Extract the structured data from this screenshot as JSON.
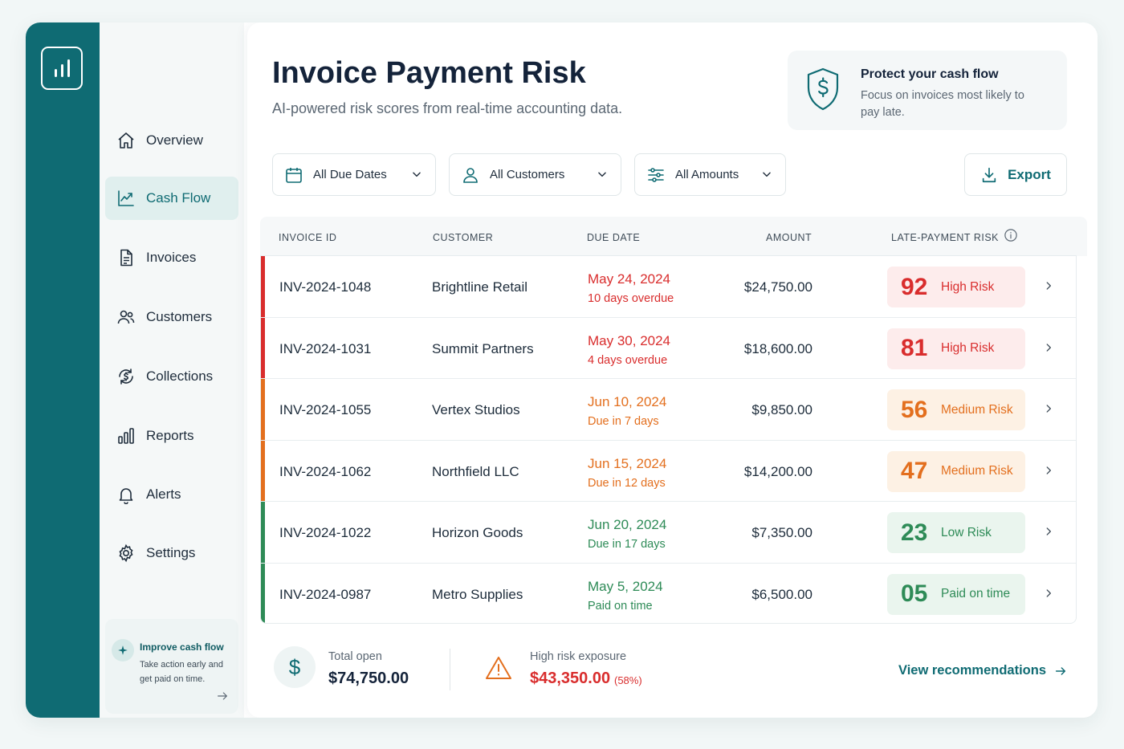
{
  "colors": {
    "brand": "#0f6b73",
    "high": "#d92d2d",
    "medium": "#e36f1e",
    "low": "#2e8b57"
  },
  "sidebar": {
    "items": [
      {
        "label": "Overview",
        "icon": "home-icon"
      },
      {
        "label": "Cash Flow",
        "icon": "trend-line-icon",
        "active": true
      },
      {
        "label": "Invoices",
        "icon": "document-icon"
      },
      {
        "label": "Customers",
        "icon": "users-icon"
      },
      {
        "label": "Collections",
        "icon": "money-cycle-icon"
      },
      {
        "label": "Reports",
        "icon": "bar-chart-icon"
      },
      {
        "label": "Alerts",
        "icon": "bell-icon"
      },
      {
        "label": "Settings",
        "icon": "gear-icon"
      }
    ],
    "tip": {
      "title": "Improve cash flow",
      "text": "Take action early and get paid on time."
    }
  },
  "header": {
    "title": "Invoice Payment Risk",
    "subtitle": "AI-powered risk scores from real-time accounting data."
  },
  "promo": {
    "title": "Protect your cash flow",
    "text": "Focus on invoices most likely to pay late."
  },
  "filters": {
    "due_dates": "All Due Dates",
    "customers": "All Customers",
    "amounts": "All Amounts",
    "export": "Export"
  },
  "table": {
    "headers": {
      "invoice_id": "INVOICE ID",
      "customer": "CUSTOMER",
      "due_date": "DUE DATE",
      "amount": "AMOUNT",
      "risk": "LATE-PAYMENT RISK"
    },
    "rows": [
      {
        "id": "INV-2024-1048",
        "customer": "Brightline Retail",
        "due": "May 24, 2024",
        "note": "10 days overdue",
        "amount": "$24,750.00",
        "score": "92",
        "risk": "High Risk",
        "level": "high"
      },
      {
        "id": "INV-2024-1031",
        "customer": "Summit Partners",
        "due": "May 30, 2024",
        "note": "4 days overdue",
        "amount": "$18,600.00",
        "score": "81",
        "risk": "High Risk",
        "level": "high"
      },
      {
        "id": "INV-2024-1055",
        "customer": "Vertex Studios",
        "due": "Jun 10, 2024",
        "note": "Due in 7 days",
        "amount": "$9,850.00",
        "score": "56",
        "risk": "Medium Risk",
        "level": "medium"
      },
      {
        "id": "INV-2024-1062",
        "customer": "Northfield LLC",
        "due": "Jun 15, 2024",
        "note": "Due in 12 days",
        "amount": "$14,200.00",
        "score": "47",
        "risk": "Medium Risk",
        "level": "medium"
      },
      {
        "id": "INV-2024-1022",
        "customer": "Horizon Goods",
        "due": "Jun 20, 2024",
        "note": "Due in 17 days",
        "amount": "$7,350.00",
        "score": "23",
        "risk": "Low Risk",
        "level": "low"
      },
      {
        "id": "INV-2024-0987",
        "customer": "Metro Supplies",
        "due": "May 5, 2024",
        "note": "Paid on time",
        "amount": "$6,500.00",
        "score": "05",
        "risk": "Paid on time",
        "level": "low"
      }
    ]
  },
  "footer": {
    "total_label": "Total open",
    "total_value": "$74,750.00",
    "exposure_label": "High risk exposure",
    "exposure_value": "$43,350.00",
    "exposure_pct": "(58%)",
    "link": "View recommendations"
  }
}
